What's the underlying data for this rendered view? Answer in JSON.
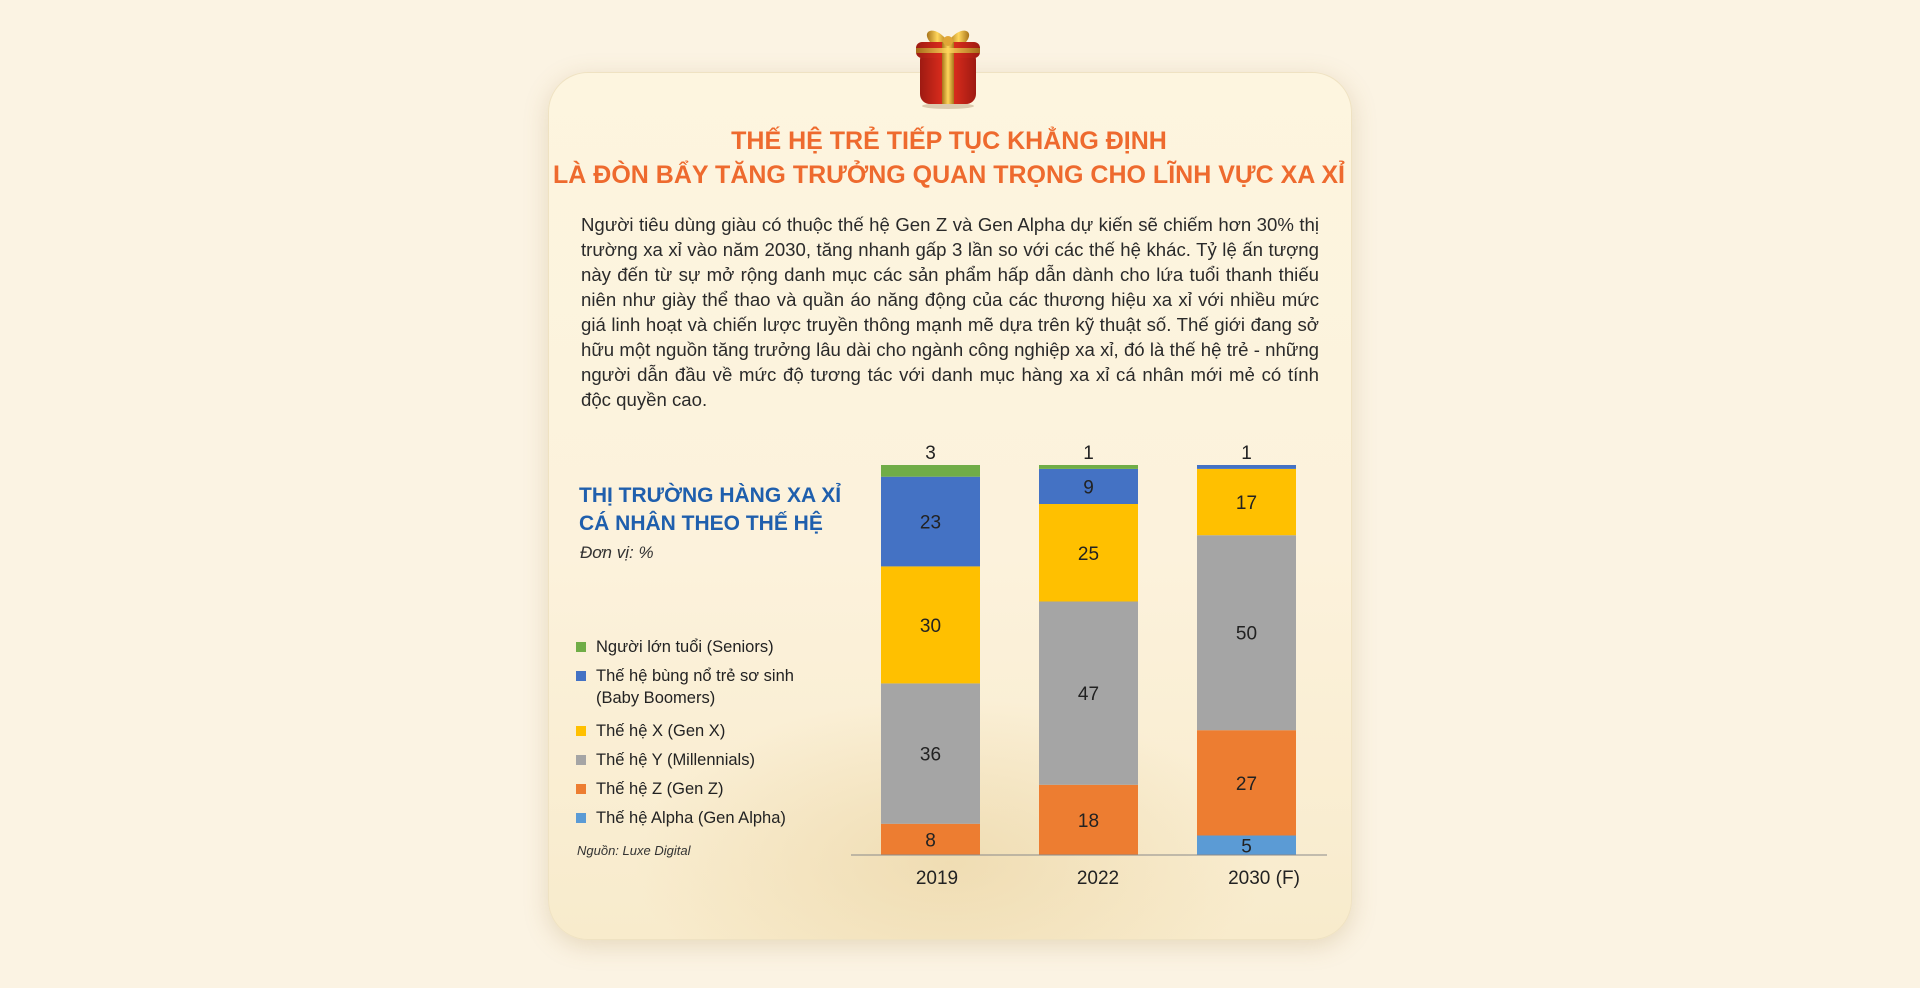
{
  "title": {
    "line1": "THẾ HỆ TRẺ TIẾP TỤC KHẲNG ĐỊNH",
    "line2": "LÀ ĐÒN BẨY TĂNG TRƯỞNG QUAN TRỌNG CHO LĨNH VỰC XA XỈ"
  },
  "intro": "Người tiêu dùng giàu có thuộc thế hệ Gen Z và Gen Alpha dự kiến sẽ chiếm hơn 30% thị trường xa xỉ vào năm 2030, tăng nhanh gấp 3 lần so với các thế hệ khác. Tỷ lệ ấn tượng này đến từ sự mở rộng danh mục các sản phẩm hấp dẫn dành cho lứa tuổi thanh thiếu niên như giày thể thao và quần áo năng động của các thương hiệu xa xỉ với nhiều mức giá linh hoạt và chiến lược truyền thông mạnh mẽ dựa trên kỹ thuật số. Thế giới đang sở hữu một nguồn tăng trưởng lâu dài cho ngành công nghiệp xa xỉ, đó là thế hệ trẻ - những người dẫn đầu về mức độ tương tác với danh mục hàng xa xỉ cá nhân mới mẻ có tính độc quyền cao.",
  "chart_data": {
    "type": "bar",
    "stacked": true,
    "title_line1": "THỊ TRƯỜNG HÀNG XA XỈ",
    "title_line2": "CÁ NHÂN THEO THẾ HỆ",
    "unit": "Đơn vị: %",
    "categories": [
      "2019",
      "2022",
      "2030 (F)"
    ],
    "series": [
      {
        "name": "Thế hệ Alpha (Gen Alpha)",
        "color": "#5b9bd5",
        "values": [
          0,
          0,
          5
        ]
      },
      {
        "name": "Thế hệ Z (Gen Z)",
        "color": "#ed7d31",
        "values": [
          8,
          18,
          27
        ]
      },
      {
        "name": "Thế hệ Y (Millennials)",
        "color": "#a5a5a5",
        "values": [
          36,
          47,
          50
        ]
      },
      {
        "name": "Thế hệ X (Gen X)",
        "color": "#ffc000",
        "values": [
          30,
          25,
          17
        ]
      },
      {
        "name": "Thế hệ bùng nổ trẻ sơ sinh (Baby Boomers)",
        "color": "#4472c4",
        "values": [
          23,
          9,
          1
        ]
      },
      {
        "name": "Người lớn tuổi (Seniors)",
        "color": "#70ad47",
        "values": [
          3,
          1,
          0
        ]
      }
    ],
    "legend_order": [
      {
        "line1": "Người lớn tuổi (Seniors)",
        "line2": "",
        "color": "#70ad47"
      },
      {
        "line1": "Thế hệ bùng nổ trẻ sơ sinh",
        "line2": "(Baby Boomers)",
        "color": "#4472c4"
      },
      {
        "line1": "Thế hệ X (Gen X)",
        "line2": "",
        "color": "#ffc000"
      },
      {
        "line1": "Thế hệ Y (Millennials)",
        "line2": "",
        "color": "#a5a5a5"
      },
      {
        "line1": "Thế hệ Z (Gen Z)",
        "line2": "",
        "color": "#ed7d31"
      },
      {
        "line1": "Thế hệ Alpha (Gen Alpha)",
        "line2": "",
        "color": "#5b9bd5"
      }
    ],
    "ylim": [
      0,
      100
    ],
    "legend_position": "left",
    "source": "Nguồn: Luxe Digital"
  }
}
